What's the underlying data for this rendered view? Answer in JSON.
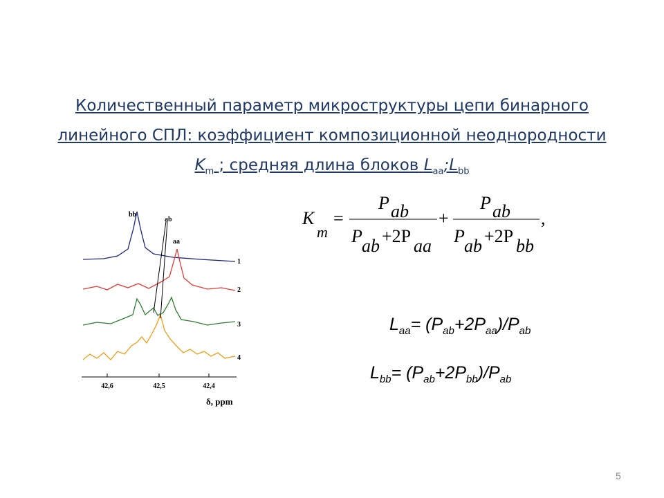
{
  "title": {
    "line1": "Количественный параметр микроструктуры цепи бинарного",
    "line2": "линейного СПЛ: коэффициент композиционной неоднородности",
    "k": "K",
    "k_sub": "m",
    "text": "; средняя длина блоков",
    "l": "L",
    "l_sub1": "aa",
    "sep": ";L",
    "l_sub2": "bb"
  },
  "km": {
    "lhs": "K",
    "lhs_sub": "m",
    "eq": "=",
    "num1": "P",
    "num1_sub": "ab",
    "den1_a": "P",
    "den1_a_sub": "ab",
    "den1_b": "+2P",
    "den1_b_sub": "aa",
    "plus": "+",
    "num2": "P",
    "num2_sub": "ab",
    "den2_a": "P",
    "den2_a_sub": "ab",
    "den2_b": "+2P",
    "den2_b_sub": "bb",
    "comma": ","
  },
  "spectrum": {
    "peaks": [
      "bb",
      "ab",
      "aa"
    ],
    "traces": [
      "1",
      "2",
      "3",
      "4"
    ],
    "ticks": [
      "42,6",
      "42,5",
      "42,4"
    ],
    "axis_label": "δ, ppm"
  },
  "laa": [
    "L",
    "aa",
    "= (P",
    "ab",
    "+2P",
    "aa",
    ")/P",
    "ab"
  ],
  "lbb": [
    "L",
    "bb",
    "= (P",
    "ab",
    "+2P",
    "bb",
    ")/P",
    "ab"
  ],
  "page_number": "5"
}
